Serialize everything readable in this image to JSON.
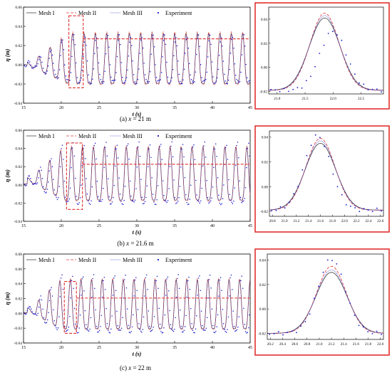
{
  "figure": {
    "panels": [
      {
        "id": "a",
        "caption_prefix": "(a) ",
        "caption_var": "x",
        "caption_suffix": " = 21 m"
      },
      {
        "id": "b",
        "caption_prefix": "(b) ",
        "caption_var": "x",
        "caption_suffix": " = 21.6 m"
      },
      {
        "id": "c",
        "caption_prefix": "(c) ",
        "caption_var": "x",
        "caption_suffix": " = 22 m"
      }
    ]
  },
  "colors": {
    "mesh1": "#444444",
    "mesh2": "#e03a3a",
    "mesh3": "#3a3ad0",
    "experiment": "#1a1ad0",
    "highlight": "#e03030",
    "axis": "#000000"
  },
  "chart_data": [
    {
      "type": "line",
      "panel": "a-main",
      "ylabel": "η (m)",
      "xlabel": "t (s)",
      "xlim": [
        15,
        45
      ],
      "ylim": [
        -0.04,
        0.06
      ],
      "xticks": [
        "15",
        "20",
        "25",
        "30",
        "35",
        "40",
        "45"
      ],
      "yticks": [
        "-0.04",
        "-0.02",
        "0.00",
        "0.02",
        "0.04",
        "0.06"
      ],
      "legend": [
        "Mesh I",
        "Mesh II",
        "Mesh  III",
        "Experiment"
      ],
      "legend_position": "top",
      "wave": {
        "t0": 17.0,
        "period": 1.5,
        "mean": 0.0,
        "ramp_end": 21.0,
        "amp_mesh": 0.026,
        "amp_exp": 0.024,
        "phase_exp": 0.15,
        "mesh_scale": [
          1.0,
          1.06,
          0.98
        ]
      },
      "highlight_box": {
        "x": [
          21.0,
          22.9
        ],
        "y": [
          -0.024,
          0.051
        ]
      },
      "series": [
        {
          "name": "Mesh I",
          "style": "solid"
        },
        {
          "name": "Mesh II",
          "style": "dashed"
        },
        {
          "name": "Mesh  III",
          "style": "dotted"
        },
        {
          "name": "Experiment",
          "style": "points"
        }
      ]
    },
    {
      "type": "line",
      "panel": "a-zoom",
      "xlim": [
        20.85,
        22.9
      ],
      "ylim": [
        -0.022,
        0.05
      ],
      "xticks": [
        "21.0",
        "21.5",
        "22.0",
        "22.5"
      ],
      "yticks": [
        "-0.02",
        "0.00",
        "0.02",
        "0.04"
      ],
      "peak": {
        "t": 21.85,
        "mesh": [
          0.041,
          0.045,
          0.043
        ],
        "exp": 0.03,
        "exp_t": 22.0,
        "trough": -0.019
      }
    },
    {
      "type": "line",
      "panel": "b-main",
      "ylabel": "η (m)",
      "xlabel": "t (s)",
      "xlim": [
        15,
        45
      ],
      "ylim": [
        -0.04,
        0.06
      ],
      "xticks": [
        "15",
        "20",
        "25",
        "30",
        "35",
        "40",
        "45"
      ],
      "yticks": [
        "-0.04",
        "-0.02",
        "0.00",
        "0.02",
        "0.04",
        "0.06"
      ],
      "legend": [
        "Mesh I",
        "Mesh II",
        "Mesh III",
        "Experiment"
      ],
      "legend_position": "top",
      "wave": {
        "t0": 17.0,
        "period": 1.45,
        "mean": 0.005,
        "ramp_end": 20.5,
        "amp_mesh": 0.029,
        "amp_exp": 0.033,
        "phase_exp": 0.2,
        "mesh_scale": [
          1.0,
          1.04,
          0.99
        ]
      },
      "highlight_box": {
        "x": [
          20.7,
          22.8
        ],
        "y": [
          -0.027,
          0.046
        ]
      },
      "series": [
        {
          "name": "Mesh I",
          "style": "solid"
        },
        {
          "name": "Mesh II",
          "style": "dashed"
        },
        {
          "name": "Mesh III",
          "style": "dotted"
        },
        {
          "name": "Experiment",
          "style": "points"
        }
      ]
    },
    {
      "type": "line",
      "panel": "b-zoom",
      "xlim": [
        20.75,
        22.65
      ],
      "ylim": [
        -0.024,
        0.045
      ],
      "xticks": [
        "20.8",
        "21.0",
        "21.2",
        "21.4",
        "21.6",
        "21.8",
        "22.0",
        "22.2",
        "22.4",
        "22.6"
      ],
      "yticks": [
        "-0.02",
        "0.00",
        "0.02",
        "0.04"
      ],
      "peak": {
        "t": 21.6,
        "mesh": [
          0.035,
          0.039,
          0.037
        ],
        "exp": 0.041,
        "exp_t": 21.55,
        "trough": -0.019
      }
    },
    {
      "type": "line",
      "panel": "c-main",
      "ylabel": "η (m)",
      "xlabel": "t (s)",
      "xlim": [
        15,
        45
      ],
      "ylim": [
        -0.04,
        0.08
      ],
      "xticks": [
        "15",
        "20",
        "25",
        "30",
        "35",
        "40",
        "45"
      ],
      "yticks": [
        "-0.04",
        "-0.02",
        "0.00",
        "0.02",
        "0.04",
        "0.06",
        "0.08"
      ],
      "legend": [
        "Mesh I",
        "Mesh II",
        "Mesh III",
        "Experiment"
      ],
      "legend_position": "top",
      "wave": {
        "t0": 17.0,
        "period": 1.4,
        "mean": 0.004,
        "ramp_end": 20.0,
        "amp_mesh": 0.033,
        "amp_exp": 0.038,
        "phase_exp": 0.25,
        "mesh_scale": [
          1.0,
          1.04,
          0.99
        ]
      },
      "highlight_box": {
        "x": [
          20.4,
          22.0
        ],
        "y": [
          -0.027,
          0.043
        ]
      },
      "series": [
        {
          "name": "Mesh I",
          "style": "solid"
        },
        {
          "name": "Mesh II",
          "style": "dashed"
        },
        {
          "name": "Mesh III",
          "style": "dotted"
        },
        {
          "name": "Experiment",
          "style": "points"
        }
      ]
    },
    {
      "type": "line",
      "panel": "c-zoom",
      "xlim": [
        20.15,
        22.05
      ],
      "ylim": [
        -0.025,
        0.045
      ],
      "xticks": [
        "20.2",
        "20.4",
        "20.6",
        "20.8",
        "21.0",
        "21.2",
        "21.4",
        "21.6",
        "21.8",
        "22.0"
      ],
      "yticks": [
        "-0.02",
        "0.00",
        "0.02",
        "0.04"
      ],
      "peak": {
        "t": 21.2,
        "mesh": [
          0.03,
          0.035,
          0.032
        ],
        "exp": 0.041,
        "exp_t": 21.2,
        "trough": -0.02
      }
    }
  ]
}
